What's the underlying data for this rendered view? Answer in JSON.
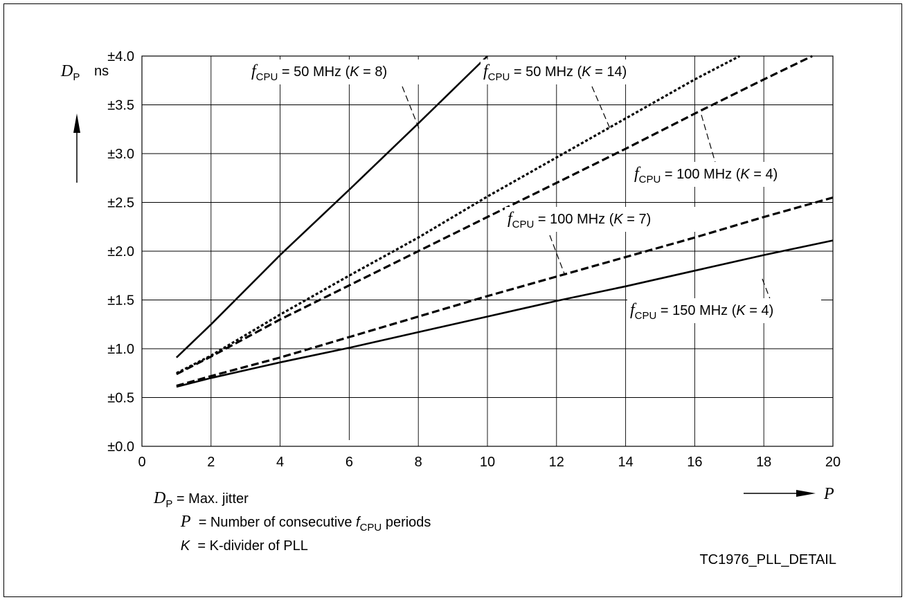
{
  "chart_data": {
    "type": "line",
    "title": "",
    "xlabel": "P",
    "ylabel": "D_P",
    "y_unit": "ns",
    "xlim": [
      0,
      20
    ],
    "ylim": [
      0,
      4
    ],
    "grid": true,
    "x_ticks": [
      "0",
      "2",
      "4",
      "6",
      "8",
      "10",
      "12",
      "14",
      "16",
      "18",
      "20"
    ],
    "y_ticks": [
      "±0.0",
      "±0.5",
      "±1.0",
      "±1.5",
      "±2.0",
      "±2.5",
      "±3.0",
      "±3.5",
      "±4.0"
    ],
    "series": [
      {
        "name": "fCPU = 50 MHz (K = 8)",
        "x": [
          1,
          2,
          4,
          6,
          8,
          10
        ],
        "values": [
          0.91,
          1.25,
          1.96,
          2.63,
          3.31,
          4.0
        ]
      },
      {
        "name": "fCPU = 50 MHz (K = 14)",
        "x": [
          1,
          2,
          4,
          6,
          8,
          10,
          12,
          14,
          16,
          17.3
        ],
        "values": [
          0.75,
          0.93,
          1.35,
          1.75,
          2.14,
          2.56,
          2.96,
          3.36,
          3.76,
          4.0
        ]
      },
      {
        "name": "fCPU = 100 MHz (K = 4)",
        "x": [
          1,
          2,
          4,
          6,
          8,
          10,
          12,
          14,
          16,
          18,
          19.4
        ],
        "values": [
          0.74,
          0.92,
          1.3,
          1.65,
          2.0,
          2.35,
          2.7,
          3.05,
          3.41,
          3.76,
          4.0
        ]
      },
      {
        "name": "fCPU = 100 MHz (K = 7)",
        "x": [
          1,
          2,
          4,
          6,
          8,
          10,
          12,
          14,
          16,
          18,
          20
        ],
        "values": [
          0.62,
          0.72,
          0.91,
          1.12,
          1.33,
          1.54,
          1.74,
          1.94,
          2.14,
          2.35,
          2.55
        ]
      },
      {
        "name": "fCPU = 150 MHz (K = 4)",
        "x": [
          1,
          2,
          4,
          6,
          8,
          10,
          12,
          14,
          16,
          18,
          20
        ],
        "values": [
          0.61,
          0.7,
          0.86,
          1.01,
          1.17,
          1.33,
          1.49,
          1.64,
          1.8,
          1.96,
          2.11
        ]
      }
    ],
    "annotations": [
      {
        "main": "f",
        "sub": "CPU",
        "rest_a": " = 50 MHz (",
        "k": "K",
        "rest_b": " = 8)"
      },
      {
        "main": "f",
        "sub": "CPU",
        "rest_a": " = 50 MHz (",
        "k": "K",
        "rest_b": " = 14)"
      },
      {
        "main": "f",
        "sub": "CPU",
        "rest_a": " = 100 MHz (",
        "k": "K",
        "rest_b": " = 4)"
      },
      {
        "main": "f",
        "sub": "CPU",
        "rest_a": " = 100 MHz (",
        "k": "K",
        "rest_b": " = 7)"
      },
      {
        "main": "f",
        "sub": "CPU",
        "rest_a": " = 150 MHz (",
        "k": "K",
        "rest_b": " = 4)"
      }
    ]
  },
  "axis": {
    "y_symbol": "D",
    "y_sub": "P",
    "y_unit": "ns",
    "x_symbol": "P"
  },
  "legend": {
    "line1_sym": "D",
    "line1_sub": "P",
    "line1_text": " = Max. jitter",
    "line2_sym": "P",
    "line2_text_a": "  = Number of consecutive ",
    "line2_f": "f",
    "line2_sub": "CPU",
    "line2_text_b": " periods",
    "line3_sym": "K",
    "line3_text": "  = K-divider of PLL"
  },
  "figure_id": "TC1976_PLL_DETAIL"
}
